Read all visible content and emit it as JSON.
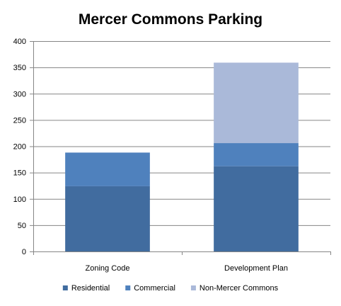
{
  "chart_data": {
    "type": "bar",
    "stacked": true,
    "title": "Mercer Commons Parking",
    "xlabel": "",
    "ylabel": "",
    "categories": [
      "Zoning Code",
      "Development Plan"
    ],
    "series": [
      {
        "name": "Residential",
        "values": [
          124,
          162
        ],
        "color": "#416c9f"
      },
      {
        "name": "Commercial",
        "values": [
          64,
          44
        ],
        "color": "#4f81bd"
      },
      {
        "name": "Non-Mercer Commons",
        "values": [
          0,
          153
        ],
        "color": "#aab9d9"
      }
    ],
    "ylim": [
      0,
      400
    ],
    "yticks": [
      0,
      50,
      100,
      150,
      200,
      250,
      300,
      350,
      400
    ],
    "grid": true,
    "legend_position": "bottom"
  }
}
